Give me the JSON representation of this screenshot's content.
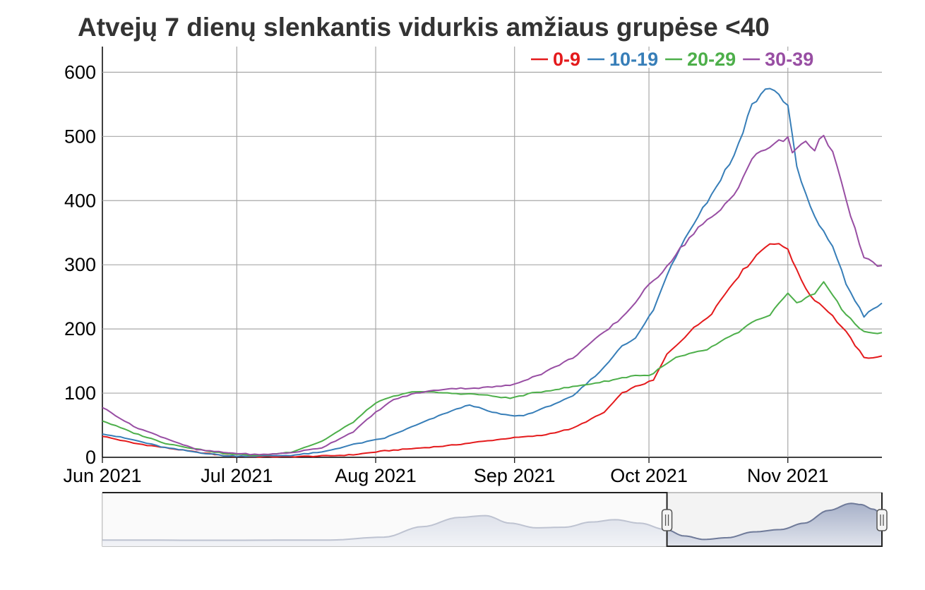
{
  "chart_data": {
    "type": "line",
    "title": "Atvejų 7 dienų slenkantis vidurkis amžiaus grupėse <40",
    "xlabel": "",
    "ylabel": "",
    "x_range": [
      "2021-06-01",
      "2021-11-22"
    ],
    "x_ticks": [
      {
        "date": "2021-06-01",
        "label": "Jun 2021"
      },
      {
        "date": "2021-07-01",
        "label": "Jul 2021"
      },
      {
        "date": "2021-08-01",
        "label": "Aug 2021"
      },
      {
        "date": "2021-09-01",
        "label": "Sep 2021"
      },
      {
        "date": "2021-10-01",
        "label": "Oct 2021"
      },
      {
        "date": "2021-11-01",
        "label": "Nov 2021"
      }
    ],
    "ylim": [
      0,
      640
    ],
    "y_ticks": [
      {
        "value": 0,
        "label": "0"
      },
      {
        "value": 100,
        "label": "100"
      },
      {
        "value": 200,
        "label": "200"
      },
      {
        "value": 300,
        "label": "300"
      },
      {
        "value": 400,
        "label": "400"
      },
      {
        "value": 500,
        "label": "500"
      },
      {
        "value": 600,
        "label": "600"
      }
    ],
    "grid": true,
    "legend_position": "top-right",
    "series": [
      {
        "name": "0-9",
        "color": "#e41a1c",
        "points": [
          [
            "2021-06-01",
            33
          ],
          [
            "2021-06-08",
            22
          ],
          [
            "2021-06-15",
            15
          ],
          [
            "2021-06-22",
            8
          ],
          [
            "2021-06-29",
            2
          ],
          [
            "2021-07-06",
            1
          ],
          [
            "2021-07-13",
            1
          ],
          [
            "2021-07-20",
            2
          ],
          [
            "2021-07-27",
            4
          ],
          [
            "2021-08-03",
            10
          ],
          [
            "2021-08-10",
            14
          ],
          [
            "2021-08-17",
            18
          ],
          [
            "2021-08-24",
            24
          ],
          [
            "2021-08-31",
            30
          ],
          [
            "2021-09-07",
            34
          ],
          [
            "2021-09-14",
            45
          ],
          [
            "2021-09-21",
            70
          ],
          [
            "2021-09-25",
            100
          ],
          [
            "2021-09-28",
            110
          ],
          [
            "2021-10-02",
            120
          ],
          [
            "2021-10-05",
            160
          ],
          [
            "2021-10-10",
            195
          ],
          [
            "2021-10-15",
            225
          ],
          [
            "2021-10-20",
            275
          ],
          [
            "2021-10-25",
            315
          ],
          [
            "2021-10-28",
            335
          ],
          [
            "2021-11-01",
            326
          ],
          [
            "2021-11-03",
            290
          ],
          [
            "2021-11-06",
            252
          ],
          [
            "2021-11-10",
            228
          ],
          [
            "2021-11-14",
            195
          ],
          [
            "2021-11-18",
            155
          ],
          [
            "2021-11-22",
            157
          ]
        ]
      },
      {
        "name": "10-19",
        "color": "#377eb8",
        "points": [
          [
            "2021-06-01",
            37
          ],
          [
            "2021-06-08",
            27
          ],
          [
            "2021-06-15",
            15
          ],
          [
            "2021-06-22",
            8
          ],
          [
            "2021-06-29",
            2
          ],
          [
            "2021-07-06",
            2
          ],
          [
            "2021-07-13",
            3
          ],
          [
            "2021-07-20",
            8
          ],
          [
            "2021-07-27",
            20
          ],
          [
            "2021-08-03",
            30
          ],
          [
            "2021-08-10",
            50
          ],
          [
            "2021-08-17",
            70
          ],
          [
            "2021-08-22",
            82
          ],
          [
            "2021-08-27",
            70
          ],
          [
            "2021-08-31",
            65
          ],
          [
            "2021-09-03",
            65
          ],
          [
            "2021-09-07",
            75
          ],
          [
            "2021-09-14",
            95
          ],
          [
            "2021-09-21",
            140
          ],
          [
            "2021-09-25",
            175
          ],
          [
            "2021-09-28",
            185
          ],
          [
            "2021-10-02",
            230
          ],
          [
            "2021-10-06",
            300
          ],
          [
            "2021-10-10",
            355
          ],
          [
            "2021-10-15",
            410
          ],
          [
            "2021-10-20",
            470
          ],
          [
            "2021-10-24",
            550
          ],
          [
            "2021-10-28",
            578
          ],
          [
            "2021-11-01",
            550
          ],
          [
            "2021-11-03",
            450
          ],
          [
            "2021-11-06",
            390
          ],
          [
            "2021-11-08",
            360
          ],
          [
            "2021-11-11",
            330
          ],
          [
            "2021-11-14",
            270
          ],
          [
            "2021-11-18",
            220
          ],
          [
            "2021-11-22",
            240
          ]
        ]
      },
      {
        "name": "20-29",
        "color": "#4daf4a",
        "points": [
          [
            "2021-06-01",
            57
          ],
          [
            "2021-06-08",
            38
          ],
          [
            "2021-06-15",
            22
          ],
          [
            "2021-06-22",
            13
          ],
          [
            "2021-06-29",
            5
          ],
          [
            "2021-07-06",
            3
          ],
          [
            "2021-07-13",
            8
          ],
          [
            "2021-07-20",
            25
          ],
          [
            "2021-07-27",
            55
          ],
          [
            "2021-08-01",
            85
          ],
          [
            "2021-08-05",
            95
          ],
          [
            "2021-08-10",
            103
          ],
          [
            "2021-08-17",
            100
          ],
          [
            "2021-08-24",
            98
          ],
          [
            "2021-08-31",
            92
          ],
          [
            "2021-09-05",
            100
          ],
          [
            "2021-09-14",
            110
          ],
          [
            "2021-09-21",
            118
          ],
          [
            "2021-09-28",
            128
          ],
          [
            "2021-10-01",
            127
          ],
          [
            "2021-10-07",
            155
          ],
          [
            "2021-10-14",
            168
          ],
          [
            "2021-10-21",
            195
          ],
          [
            "2021-10-24",
            210
          ],
          [
            "2021-10-28",
            220
          ],
          [
            "2021-11-01",
            258
          ],
          [
            "2021-11-03",
            240
          ],
          [
            "2021-11-07",
            255
          ],
          [
            "2021-11-09",
            275
          ],
          [
            "2021-11-13",
            230
          ],
          [
            "2021-11-18",
            195
          ],
          [
            "2021-11-22",
            193
          ]
        ]
      },
      {
        "name": "30-39",
        "color": "#984ea3",
        "points": [
          [
            "2021-06-01",
            78
          ],
          [
            "2021-06-08",
            48
          ],
          [
            "2021-06-15",
            30
          ],
          [
            "2021-06-22",
            12
          ],
          [
            "2021-06-29",
            7
          ],
          [
            "2021-07-06",
            4
          ],
          [
            "2021-07-13",
            7
          ],
          [
            "2021-07-20",
            15
          ],
          [
            "2021-07-27",
            40
          ],
          [
            "2021-08-01",
            70
          ],
          [
            "2021-08-05",
            90
          ],
          [
            "2021-08-10",
            100
          ],
          [
            "2021-08-17",
            107
          ],
          [
            "2021-08-24",
            108
          ],
          [
            "2021-08-31",
            112
          ],
          [
            "2021-09-07",
            130
          ],
          [
            "2021-09-14",
            155
          ],
          [
            "2021-09-18",
            178
          ],
          [
            "2021-09-22",
            200
          ],
          [
            "2021-09-26",
            225
          ],
          [
            "2021-09-30",
            260
          ],
          [
            "2021-10-04",
            290
          ],
          [
            "2021-10-08",
            325
          ],
          [
            "2021-10-12",
            358
          ],
          [
            "2021-10-16",
            378
          ],
          [
            "2021-10-20",
            410
          ],
          [
            "2021-10-24",
            465
          ],
          [
            "2021-10-28",
            485
          ],
          [
            "2021-11-01",
            497
          ],
          [
            "2021-11-02",
            475
          ],
          [
            "2021-11-05",
            495
          ],
          [
            "2021-11-07",
            478
          ],
          [
            "2021-11-09",
            505
          ],
          [
            "2021-11-11",
            475
          ],
          [
            "2021-11-14",
            400
          ],
          [
            "2021-11-18",
            310
          ],
          [
            "2021-11-22",
            297
          ]
        ]
      }
    ],
    "navigator": {
      "x_range": [
        "2020-03-01",
        "2021-11-22"
      ],
      "selected_range": [
        "2021-06-01",
        "2021-11-22"
      ],
      "overview_points": [
        [
          "2020-03-01",
          5
        ],
        [
          "2020-06-01",
          3
        ],
        [
          "2020-09-01",
          5
        ],
        [
          "2020-10-15",
          30
        ],
        [
          "2020-11-15",
          120
        ],
        [
          "2020-12-15",
          200
        ],
        [
          "2021-01-05",
          215
        ],
        [
          "2021-01-25",
          150
        ],
        [
          "2021-02-15",
          110
        ],
        [
          "2021-03-10",
          115
        ],
        [
          "2021-04-01",
          160
        ],
        [
          "2021-04-20",
          180
        ],
        [
          "2021-05-10",
          150
        ],
        [
          "2021-05-31",
          95
        ],
        [
          "2021-06-15",
          40
        ],
        [
          "2021-07-01",
          10
        ],
        [
          "2021-07-20",
          25
        ],
        [
          "2021-08-10",
          75
        ],
        [
          "2021-09-01",
          95
        ],
        [
          "2021-09-20",
          150
        ],
        [
          "2021-10-10",
          260
        ],
        [
          "2021-10-28",
          320
        ],
        [
          "2021-11-05",
          310
        ],
        [
          "2021-11-15",
          270
        ],
        [
          "2021-11-22",
          230
        ]
      ]
    }
  }
}
